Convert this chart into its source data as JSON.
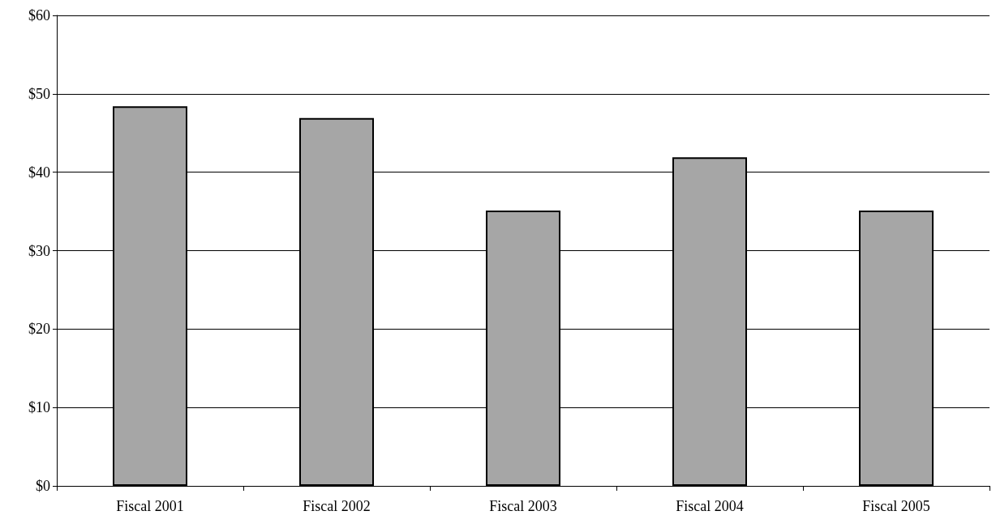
{
  "chart_data": {
    "type": "bar",
    "categories": [
      "Fiscal 2001",
      "Fiscal 2002",
      "Fiscal 2003",
      "Fiscal 2004",
      "Fiscal 2005"
    ],
    "values": [
      48.4,
      46.9,
      35.1,
      41.9,
      35.1
    ],
    "color": "#a6a6a6",
    "ylim": [
      0,
      60
    ],
    "yticks": [
      {
        "value": 0,
        "label": "$0"
      },
      {
        "value": 10,
        "label": "$10"
      },
      {
        "value": 20,
        "label": "$20"
      },
      {
        "value": 30,
        "label": "$30"
      },
      {
        "value": 40,
        "label": "$40"
      },
      {
        "value": 50,
        "label": "$50"
      },
      {
        "value": 60,
        "label": "$60"
      }
    ],
    "grid": "y"
  }
}
